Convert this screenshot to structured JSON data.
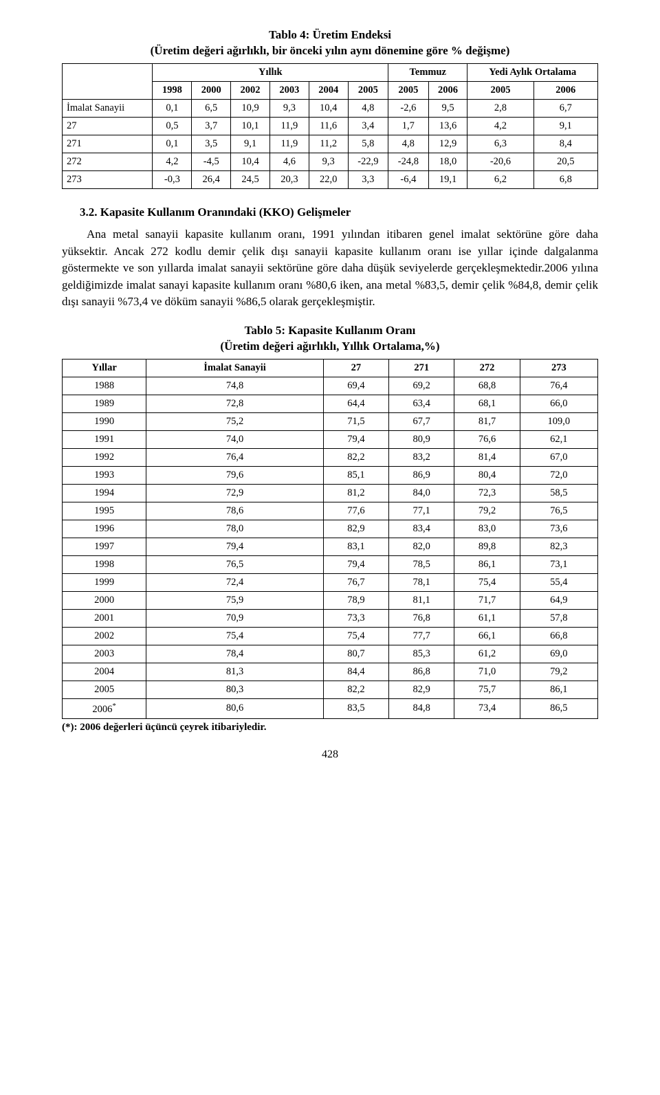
{
  "table4": {
    "title_line1": "Tablo 4: Üretim Endeksi",
    "title_line2": "(Üretim değeri ağırlıklı, bir önceki yılın aynı dönemine göre % değişme)",
    "group_headers": [
      "Yıllık",
      "Temmuz",
      "Yedi Aylık Ortalama"
    ],
    "year_headers": [
      "1998",
      "2000",
      "2002",
      "2003",
      "2004",
      "2005",
      "2005",
      "2006",
      "2005",
      "2006"
    ],
    "rows": [
      {
        "label": "İmalat Sanayii",
        "cells": [
          "0,1",
          "6,5",
          "10,9",
          "9,3",
          "10,4",
          "4,8",
          "-2,6",
          "9,5",
          "2,8",
          "6,7"
        ]
      },
      {
        "label": "27",
        "cells": [
          "0,5",
          "3,7",
          "10,1",
          "11,9",
          "11,6",
          "3,4",
          "1,7",
          "13,6",
          "4,2",
          "9,1"
        ]
      },
      {
        "label": "271",
        "cells": [
          "0,1",
          "3,5",
          "9,1",
          "11,9",
          "11,2",
          "5,8",
          "4,8",
          "12,9",
          "6,3",
          "8,4"
        ]
      },
      {
        "label": "272",
        "cells": [
          "4,2",
          "-4,5",
          "10,4",
          "4,6",
          "9,3",
          "-22,9",
          "-24,8",
          "18,0",
          "-20,6",
          "20,5"
        ]
      },
      {
        "label": "273",
        "cells": [
          "-0,3",
          "26,4",
          "24,5",
          "20,3",
          "22,0",
          "3,3",
          "-6,4",
          "19,1",
          "6,2",
          "6,8"
        ]
      }
    ]
  },
  "section": {
    "heading": "3.2. Kapasite Kullanım Oranındaki (KKO) Gelişmeler",
    "para": "Ana metal sanayii kapasite kullanım oranı, 1991 yılından itibaren genel imalat sektörüne göre daha yüksektir. Ancak 272 kodlu demir çelik dışı sanayii kapasite kullanım oranı ise yıllar içinde dalgalanma göstermekte ve son yıllarda imalat sanayii sektörüne göre daha düşük seviyelerde gerçekleşmektedir.2006 yılına geldiğimizde imalat sanayi kapasite kullanım oranı %80,6 iken, ana metal %83,5, demir çelik %84,8, demir çelik dışı sanayii %73,4 ve döküm sanayii %86,5 olarak gerçekleşmiştir."
  },
  "table5": {
    "title_line1": "Tablo 5: Kapasite Kullanım Oranı",
    "title_line2": "(Üretim değeri ağırlıklı, Yıllık Ortalama,%)",
    "headers": [
      "Yıllar",
      "İmalat Sanayii",
      "27",
      "271",
      "272",
      "273"
    ],
    "rows": [
      [
        "1988",
        "74,8",
        "69,4",
        "69,2",
        "68,8",
        "76,4"
      ],
      [
        "1989",
        "72,8",
        "64,4",
        "63,4",
        "68,1",
        "66,0"
      ],
      [
        "1990",
        "75,2",
        "71,5",
        "67,7",
        "81,7",
        "109,0"
      ],
      [
        "1991",
        "74,0",
        "79,4",
        "80,9",
        "76,6",
        "62,1"
      ],
      [
        "1992",
        "76,4",
        "82,2",
        "83,2",
        "81,4",
        "67,0"
      ],
      [
        "1993",
        "79,6",
        "85,1",
        "86,9",
        "80,4",
        "72,0"
      ],
      [
        "1994",
        "72,9",
        "81,2",
        "84,0",
        "72,3",
        "58,5"
      ],
      [
        "1995",
        "78,6",
        "77,6",
        "77,1",
        "79,2",
        "76,5"
      ],
      [
        "1996",
        "78,0",
        "82,9",
        "83,4",
        "83,0",
        "73,6"
      ],
      [
        "1997",
        "79,4",
        "83,1",
        "82,0",
        "89,8",
        "82,3"
      ],
      [
        "1998",
        "76,5",
        "79,4",
        "78,5",
        "86,1",
        "73,1"
      ],
      [
        "1999",
        "72,4",
        "76,7",
        "78,1",
        "75,4",
        "55,4"
      ],
      [
        "2000",
        "75,9",
        "78,9",
        "81,1",
        "71,7",
        "64,9"
      ],
      [
        "2001",
        "70,9",
        "73,3",
        "76,8",
        "61,1",
        "57,8"
      ],
      [
        "2002",
        "75,4",
        "75,4",
        "77,7",
        "66,1",
        "66,8"
      ],
      [
        "2003",
        "78,4",
        "80,7",
        "85,3",
        "61,2",
        "69,0"
      ],
      [
        "2004",
        "81,3",
        "84,4",
        "86,8",
        "71,0",
        "79,2"
      ],
      [
        "2005",
        "80,3",
        "82,2",
        "82,9",
        "75,7",
        "86,1"
      ],
      [
        "2006*",
        "80,6",
        "83,5",
        "84,8",
        "73,4",
        "86,5"
      ]
    ],
    "footnote": "(*): 2006 değerleri üçüncü çeyrek itibariyledir."
  },
  "pagenum": "428"
}
